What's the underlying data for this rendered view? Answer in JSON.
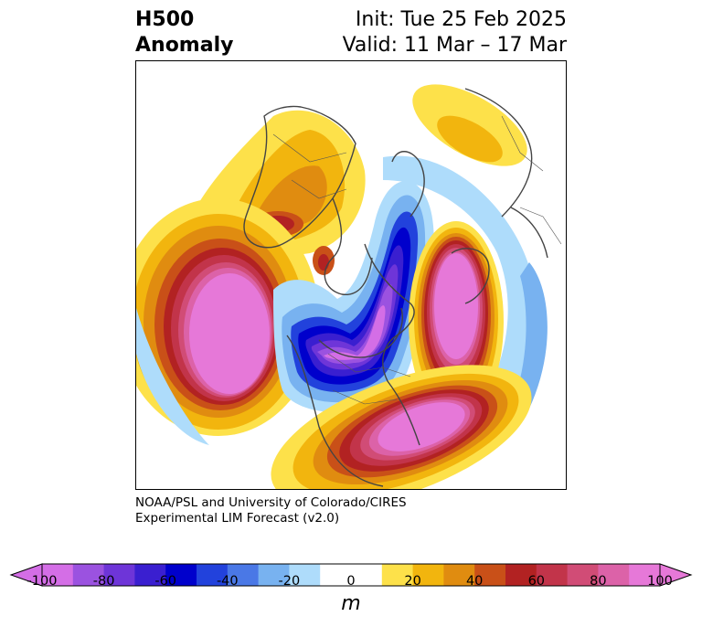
{
  "header": {
    "title_line1": "H500",
    "title_line2": "Anomaly",
    "init_text": "Init: Tue 25 Feb 2025",
    "valid_text": "Valid: 11 Mar – 17 Mar"
  },
  "credit": {
    "line1": "NOAA/PSL and University of Colorado/CIRES",
    "line2": "Experimental LIM Forecast (v2.0)"
  },
  "colorbar": {
    "unit": "m",
    "ticks": [
      "-100",
      "-80",
      "-60",
      "-40",
      "-20",
      "0",
      "20",
      "40",
      "60",
      "80",
      "100"
    ],
    "colors": [
      "#d46ee6",
      "#9b52e0",
      "#6e35d8",
      "#3a1fd0",
      "#0000cc",
      "#2242dc",
      "#4a78e6",
      "#78b2f0",
      "#aedcfb",
      "#ffffff",
      "#ffffff",
      "#fde14a",
      "#f2b50e",
      "#e08c10",
      "#c95018",
      "#b22222",
      "#c2344a",
      "#d14c76",
      "#dc62a8",
      "#e678d8"
    ],
    "extend_low": "#d46ee6",
    "extend_high": "#e678d8"
  },
  "map": {
    "projection": "north-polar-stereographic",
    "field": "500 hPa geopotential height anomaly",
    "features": [
      {
        "name": "positive-anomaly-north-pacific",
        "sign": "positive",
        "peak_m": 100
      },
      {
        "name": "positive-anomaly-east-asia",
        "sign": "positive",
        "peak_m": 60
      },
      {
        "name": "positive-anomaly-north-atlantic",
        "sign": "positive",
        "peak_m": 100
      },
      {
        "name": "positive-anomaly-europe",
        "sign": "positive",
        "peak_m": 100
      },
      {
        "name": "negative-anomaly-north-america-arctic",
        "sign": "negative",
        "peak_m": -100
      },
      {
        "name": "negative-anomaly-siberia",
        "sign": "negative",
        "peak_m": -40
      },
      {
        "name": "negative-anomaly-subtropical-pacific",
        "sign": "negative",
        "peak_m": -20
      }
    ]
  }
}
